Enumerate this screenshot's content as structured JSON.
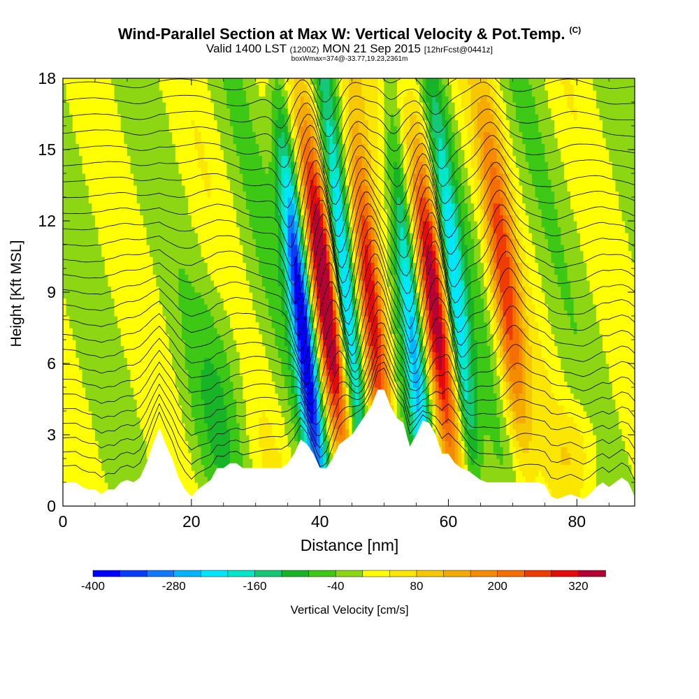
{
  "title": {
    "main": "Wind-Parallel Section at Max W: Vertical Velocity & Pot.Temp.",
    "main_mark": "(C)",
    "valid_prefix": "Valid 1400 LST",
    "valid_utc": "(1200Z)",
    "valid_date": "MON 21 Sep 2015",
    "forecast": "[12hrFcst@0441z]",
    "box_info": "boxWmax=374@-33.77,19.23,2361m"
  },
  "chart_data": {
    "type": "heatmap",
    "xlabel": "Distance [nm]",
    "ylabel": "Height [Kft MSL]",
    "xlim": [
      0,
      89
    ],
    "ylim": [
      0,
      18
    ],
    "x_ticks": [
      0,
      20,
      40,
      60,
      80
    ],
    "y_ticks": [
      0,
      3,
      6,
      9,
      12,
      15,
      18
    ],
    "grid": false,
    "colorbar": {
      "label": "Vertical Velocity [cm/s]",
      "placement": "bottom",
      "min": -400,
      "max": 360,
      "step": 40,
      "tick_labels": [
        -400,
        -280,
        -160,
        -40,
        80,
        200,
        320
      ],
      "colors": [
        "#0000ff",
        "#0a3cff",
        "#0f78ff",
        "#00b4ff",
        "#00e6ff",
        "#00e6c8",
        "#14c878",
        "#18b428",
        "#3cc814",
        "#8cd614",
        "#ffff00",
        "#fae600",
        "#f5c800",
        "#f5aa00",
        "#f58c00",
        "#f56e00",
        "#f03c00",
        "#e60a0a",
        "#b40032"
      ]
    },
    "terrain_kft": [
      [
        0,
        1.0
      ],
      [
        2,
        1.0
      ],
      [
        3,
        0.8
      ],
      [
        4,
        0.7
      ],
      [
        5,
        0.7
      ],
      [
        6,
        0.5
      ],
      [
        7,
        0.7
      ],
      [
        8,
        0.7
      ],
      [
        9,
        1.0
      ],
      [
        10,
        1.1
      ],
      [
        11,
        1.0
      ],
      [
        12,
        1.2
      ],
      [
        13,
        1.8
      ],
      [
        14,
        2.6
      ],
      [
        15,
        3.3
      ],
      [
        16,
        2.6
      ],
      [
        17,
        2.0
      ],
      [
        18,
        1.2
      ],
      [
        19,
        0.7
      ],
      [
        20,
        0.4
      ],
      [
        21,
        0.7
      ],
      [
        22,
        0.9
      ],
      [
        23,
        1.1
      ],
      [
        24,
        1.6
      ],
      [
        25,
        1.6
      ],
      [
        26,
        1.8
      ],
      [
        27,
        1.8
      ],
      [
        28,
        1.6
      ],
      [
        29,
        1.6
      ],
      [
        30,
        1.6
      ],
      [
        31,
        1.6
      ],
      [
        32,
        1.6
      ],
      [
        33,
        1.6
      ],
      [
        34,
        1.6
      ],
      [
        35,
        1.8
      ],
      [
        36,
        2.2
      ],
      [
        37,
        2.8
      ],
      [
        38,
        2.6
      ],
      [
        39,
        2.2
      ],
      [
        40,
        1.6
      ],
      [
        41,
        1.6
      ],
      [
        42,
        2.0
      ],
      [
        43,
        2.6
      ],
      [
        44,
        2.8
      ],
      [
        45,
        3.0
      ],
      [
        46,
        3.4
      ],
      [
        47,
        3.8
      ],
      [
        48,
        4.2
      ],
      [
        49,
        4.9
      ],
      [
        50,
        4.9
      ],
      [
        51,
        4.2
      ],
      [
        52,
        3.7
      ],
      [
        53,
        3.5
      ],
      [
        54,
        2.5
      ],
      [
        55,
        3.0
      ],
      [
        56,
        3.6
      ],
      [
        57,
        3.5
      ],
      [
        58,
        3.0
      ],
      [
        59,
        2.2
      ],
      [
        60,
        2.2
      ],
      [
        61,
        1.8
      ],
      [
        62,
        1.6
      ],
      [
        63,
        1.5
      ],
      [
        64,
        1.3
      ],
      [
        65,
        1.1
      ],
      [
        66,
        1.0
      ],
      [
        67,
        1.0
      ],
      [
        68,
        1.0
      ],
      [
        69,
        1.0
      ],
      [
        70,
        1.0
      ],
      [
        71,
        1.0
      ],
      [
        72,
        1.0
      ],
      [
        73,
        1.0
      ],
      [
        74,
        1.0
      ],
      [
        75,
        0.9
      ],
      [
        76,
        0.4
      ],
      [
        77,
        0.3
      ],
      [
        78,
        0.4
      ],
      [
        79,
        0.5
      ],
      [
        80,
        0.4
      ],
      [
        81,
        0.3
      ],
      [
        82,
        0.5
      ],
      [
        83,
        0.8
      ],
      [
        84,
        1.0
      ],
      [
        85,
        0.8
      ],
      [
        86,
        1.0
      ],
      [
        87,
        1.2
      ],
      [
        88,
        1.0
      ],
      [
        89,
        0.4
      ]
    ],
    "updraft_cores": [
      {
        "x": 42,
        "peak_cms": 360
      },
      {
        "x": 49,
        "peak_cms": 374
      },
      {
        "x": 59,
        "peak_cms": 320
      },
      {
        "x": 70,
        "peak_cms": 240
      }
    ],
    "downdraft_cores": [
      {
        "x": 38,
        "peak_cms": -400
      },
      {
        "x": 45,
        "peak_cms": -320
      },
      {
        "x": 55,
        "peak_cms": -280
      },
      {
        "x": 62,
        "peak_cms": -240
      }
    ],
    "contour_field": "potential temperature",
    "contour_count": 26
  }
}
